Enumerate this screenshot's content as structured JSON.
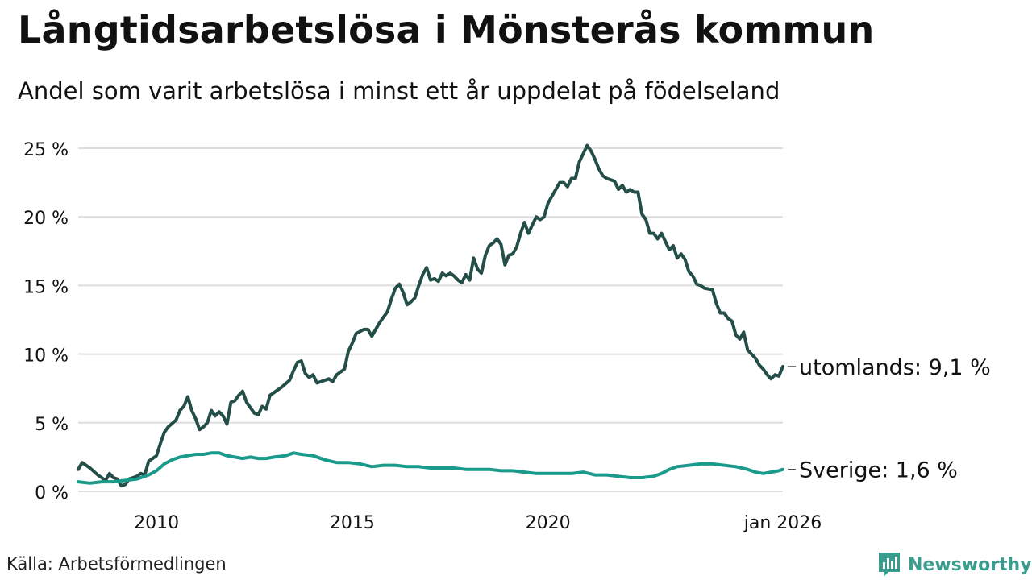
{
  "header": {
    "title": "Långtidsarbetslösa i Mönsterås kommun",
    "subtitle": "Andel som varit arbetslösa i minst ett år uppdelat på födelseland"
  },
  "footer": {
    "source": "Källa: Arbetsförmedlingen",
    "brand": "Newsworthy"
  },
  "colors": {
    "utomlands": "#244e48",
    "sverige": "#1a9a8a",
    "grid": "#dddddd",
    "text": "#111111"
  },
  "chart_data": {
    "type": "line",
    "title": "Långtidsarbetslösa i Mönsterås kommun",
    "xlabel": "",
    "ylabel": "",
    "ylim": [
      0,
      25
    ],
    "xlim": [
      2008.0,
      2026.0
    ],
    "yticks": [
      {
        "value": 0,
        "label": "0 %"
      },
      {
        "value": 5,
        "label": "5 %"
      },
      {
        "value": 10,
        "label": "10 %"
      },
      {
        "value": 15,
        "label": "15 %"
      },
      {
        "value": 20,
        "label": "20 %"
      },
      {
        "value": 25,
        "label": "25 %"
      }
    ],
    "xticks": [
      {
        "value": 2010,
        "label": "2010"
      },
      {
        "value": 2015,
        "label": "2015"
      },
      {
        "value": 2020,
        "label": "2020"
      },
      {
        "value": 2026.0,
        "label": "jan 2026"
      }
    ],
    "series": [
      {
        "name": "utomlands",
        "end_label": "utomlands: 9,1 %",
        "points": [
          [
            2008.0,
            1.6
          ],
          [
            2008.1,
            2.1
          ],
          [
            2008.3,
            1.7
          ],
          [
            2008.5,
            1.2
          ],
          [
            2008.6,
            1.0
          ],
          [
            2008.7,
            0.8
          ],
          [
            2008.8,
            1.3
          ],
          [
            2008.9,
            1.0
          ],
          [
            2009.0,
            0.9
          ],
          [
            2009.1,
            0.4
          ],
          [
            2009.2,
            0.5
          ],
          [
            2009.3,
            0.9
          ],
          [
            2009.4,
            1.0
          ],
          [
            2009.5,
            1.1
          ],
          [
            2009.6,
            1.3
          ],
          [
            2009.7,
            1.2
          ],
          [
            2009.8,
            2.2
          ],
          [
            2009.9,
            2.4
          ],
          [
            2010.0,
            2.6
          ],
          [
            2010.1,
            3.5
          ],
          [
            2010.2,
            4.3
          ],
          [
            2010.3,
            4.7
          ],
          [
            2010.5,
            5.2
          ],
          [
            2010.6,
            5.9
          ],
          [
            2010.7,
            6.2
          ],
          [
            2010.8,
            6.9
          ],
          [
            2010.9,
            5.9
          ],
          [
            2011.0,
            5.3
          ],
          [
            2011.1,
            4.5
          ],
          [
            2011.2,
            4.7
          ],
          [
            2011.3,
            5.0
          ],
          [
            2011.4,
            5.9
          ],
          [
            2011.5,
            5.5
          ],
          [
            2011.6,
            5.8
          ],
          [
            2011.7,
            5.5
          ],
          [
            2011.8,
            4.9
          ],
          [
            2011.9,
            6.5
          ],
          [
            2012.0,
            6.6
          ],
          [
            2012.1,
            7.0
          ],
          [
            2012.2,
            7.3
          ],
          [
            2012.3,
            6.5
          ],
          [
            2012.4,
            6.1
          ],
          [
            2012.5,
            5.7
          ],
          [
            2012.6,
            5.6
          ],
          [
            2012.7,
            6.2
          ],
          [
            2012.8,
            6.0
          ],
          [
            2012.9,
            7.0
          ],
          [
            2013.0,
            7.2
          ],
          [
            2013.2,
            7.6
          ],
          [
            2013.4,
            8.1
          ],
          [
            2013.5,
            8.8
          ],
          [
            2013.6,
            9.4
          ],
          [
            2013.7,
            9.5
          ],
          [
            2013.8,
            8.6
          ],
          [
            2013.9,
            8.3
          ],
          [
            2014.0,
            8.5
          ],
          [
            2014.1,
            7.9
          ],
          [
            2014.2,
            8.0
          ],
          [
            2014.4,
            8.2
          ],
          [
            2014.5,
            8.0
          ],
          [
            2014.6,
            8.5
          ],
          [
            2014.7,
            8.7
          ],
          [
            2014.8,
            8.9
          ],
          [
            2014.9,
            10.2
          ],
          [
            2015.0,
            10.8
          ],
          [
            2015.1,
            11.5
          ],
          [
            2015.3,
            11.8
          ],
          [
            2015.4,
            11.8
          ],
          [
            2015.5,
            11.3
          ],
          [
            2015.6,
            11.8
          ],
          [
            2015.7,
            12.3
          ],
          [
            2015.9,
            13.1
          ],
          [
            2016.0,
            14.0
          ],
          [
            2016.1,
            14.8
          ],
          [
            2016.2,
            15.1
          ],
          [
            2016.3,
            14.5
          ],
          [
            2016.4,
            13.6
          ],
          [
            2016.5,
            13.8
          ],
          [
            2016.6,
            14.1
          ],
          [
            2016.7,
            15.0
          ],
          [
            2016.8,
            15.8
          ],
          [
            2016.9,
            16.3
          ],
          [
            2017.0,
            15.4
          ],
          [
            2017.1,
            15.5
          ],
          [
            2017.2,
            15.3
          ],
          [
            2017.3,
            15.9
          ],
          [
            2017.4,
            15.7
          ],
          [
            2017.5,
            15.9
          ],
          [
            2017.6,
            15.7
          ],
          [
            2017.7,
            15.4
          ],
          [
            2017.8,
            15.2
          ],
          [
            2017.9,
            15.8
          ],
          [
            2018.0,
            15.4
          ],
          [
            2018.1,
            17.0
          ],
          [
            2018.2,
            16.2
          ],
          [
            2018.3,
            15.9
          ],
          [
            2018.4,
            17.2
          ],
          [
            2018.5,
            17.9
          ],
          [
            2018.6,
            18.1
          ],
          [
            2018.7,
            18.4
          ],
          [
            2018.8,
            18.0
          ],
          [
            2018.9,
            16.5
          ],
          [
            2019.0,
            17.2
          ],
          [
            2019.1,
            17.3
          ],
          [
            2019.2,
            17.8
          ],
          [
            2019.3,
            18.8
          ],
          [
            2019.4,
            19.6
          ],
          [
            2019.5,
            18.8
          ],
          [
            2019.6,
            19.4
          ],
          [
            2019.7,
            20.0
          ],
          [
            2019.8,
            19.8
          ],
          [
            2019.9,
            20.0
          ],
          [
            2020.0,
            21.0
          ],
          [
            2020.1,
            21.5
          ],
          [
            2020.2,
            22.0
          ],
          [
            2020.3,
            22.5
          ],
          [
            2020.4,
            22.5
          ],
          [
            2020.5,
            22.2
          ],
          [
            2020.6,
            22.8
          ],
          [
            2020.7,
            22.8
          ],
          [
            2020.8,
            24.0
          ],
          [
            2020.9,
            24.6
          ],
          [
            2021.0,
            25.2
          ],
          [
            2021.1,
            24.8
          ],
          [
            2021.2,
            24.2
          ],
          [
            2021.3,
            23.5
          ],
          [
            2021.4,
            23.0
          ],
          [
            2021.5,
            22.8
          ],
          [
            2021.6,
            22.7
          ],
          [
            2021.7,
            22.6
          ],
          [
            2021.8,
            22.0
          ],
          [
            2021.9,
            22.3
          ],
          [
            2022.0,
            21.8
          ],
          [
            2022.1,
            22.0
          ],
          [
            2022.2,
            21.8
          ],
          [
            2022.3,
            21.8
          ],
          [
            2022.4,
            20.2
          ],
          [
            2022.5,
            19.8
          ],
          [
            2022.6,
            18.8
          ],
          [
            2022.7,
            18.8
          ],
          [
            2022.8,
            18.4
          ],
          [
            2022.9,
            18.8
          ],
          [
            2023.0,
            18.2
          ],
          [
            2023.1,
            17.6
          ],
          [
            2023.2,
            17.9
          ],
          [
            2023.3,
            17.0
          ],
          [
            2023.4,
            17.3
          ],
          [
            2023.5,
            16.9
          ],
          [
            2023.6,
            16.0
          ],
          [
            2023.7,
            15.7
          ],
          [
            2023.8,
            15.1
          ],
          [
            2023.9,
            15.0
          ],
          [
            2024.0,
            14.8
          ],
          [
            2024.2,
            14.7
          ],
          [
            2024.3,
            13.7
          ],
          [
            2024.4,
            13.0
          ],
          [
            2024.5,
            13.0
          ],
          [
            2024.6,
            12.6
          ],
          [
            2024.7,
            12.4
          ],
          [
            2024.8,
            11.4
          ],
          [
            2024.9,
            11.1
          ],
          [
            2025.0,
            11.6
          ],
          [
            2025.1,
            10.3
          ],
          [
            2025.2,
            10.0
          ],
          [
            2025.3,
            9.7
          ],
          [
            2025.4,
            9.2
          ],
          [
            2025.5,
            8.9
          ],
          [
            2025.6,
            8.5
          ],
          [
            2025.7,
            8.2
          ],
          [
            2025.8,
            8.5
          ],
          [
            2025.9,
            8.4
          ],
          [
            2026.0,
            9.1
          ]
        ]
      },
      {
        "name": "Sverige",
        "end_label": "Sverige: 1,6 %",
        "points": [
          [
            2008.0,
            0.7
          ],
          [
            2008.3,
            0.6
          ],
          [
            2008.6,
            0.7
          ],
          [
            2008.9,
            0.7
          ],
          [
            2009.2,
            0.8
          ],
          [
            2009.5,
            0.9
          ],
          [
            2009.8,
            1.2
          ],
          [
            2010.0,
            1.5
          ],
          [
            2010.2,
            2.0
          ],
          [
            2010.4,
            2.3
          ],
          [
            2010.6,
            2.5
          ],
          [
            2010.8,
            2.6
          ],
          [
            2011.0,
            2.7
          ],
          [
            2011.2,
            2.7
          ],
          [
            2011.4,
            2.8
          ],
          [
            2011.6,
            2.8
          ],
          [
            2011.8,
            2.6
          ],
          [
            2012.0,
            2.5
          ],
          [
            2012.2,
            2.4
          ],
          [
            2012.4,
            2.5
          ],
          [
            2012.6,
            2.4
          ],
          [
            2012.8,
            2.4
          ],
          [
            2013.0,
            2.5
          ],
          [
            2013.3,
            2.6
          ],
          [
            2013.5,
            2.8
          ],
          [
            2013.7,
            2.7
          ],
          [
            2014.0,
            2.6
          ],
          [
            2014.3,
            2.3
          ],
          [
            2014.6,
            2.1
          ],
          [
            2014.9,
            2.1
          ],
          [
            2015.2,
            2.0
          ],
          [
            2015.5,
            1.8
          ],
          [
            2015.8,
            1.9
          ],
          [
            2016.1,
            1.9
          ],
          [
            2016.4,
            1.8
          ],
          [
            2016.7,
            1.8
          ],
          [
            2017.0,
            1.7
          ],
          [
            2017.3,
            1.7
          ],
          [
            2017.6,
            1.7
          ],
          [
            2017.9,
            1.6
          ],
          [
            2018.2,
            1.6
          ],
          [
            2018.5,
            1.6
          ],
          [
            2018.8,
            1.5
          ],
          [
            2019.1,
            1.5
          ],
          [
            2019.4,
            1.4
          ],
          [
            2019.7,
            1.3
          ],
          [
            2020.0,
            1.3
          ],
          [
            2020.3,
            1.3
          ],
          [
            2020.6,
            1.3
          ],
          [
            2020.9,
            1.4
          ],
          [
            2021.2,
            1.2
          ],
          [
            2021.5,
            1.2
          ],
          [
            2021.8,
            1.1
          ],
          [
            2022.1,
            1.0
          ],
          [
            2022.4,
            1.0
          ],
          [
            2022.7,
            1.1
          ],
          [
            2022.9,
            1.3
          ],
          [
            2023.1,
            1.6
          ],
          [
            2023.3,
            1.8
          ],
          [
            2023.6,
            1.9
          ],
          [
            2023.9,
            2.0
          ],
          [
            2024.2,
            2.0
          ],
          [
            2024.5,
            1.9
          ],
          [
            2024.8,
            1.8
          ],
          [
            2025.1,
            1.6
          ],
          [
            2025.3,
            1.4
          ],
          [
            2025.5,
            1.3
          ],
          [
            2025.7,
            1.4
          ],
          [
            2025.9,
            1.5
          ],
          [
            2026.0,
            1.6
          ]
        ]
      }
    ]
  }
}
